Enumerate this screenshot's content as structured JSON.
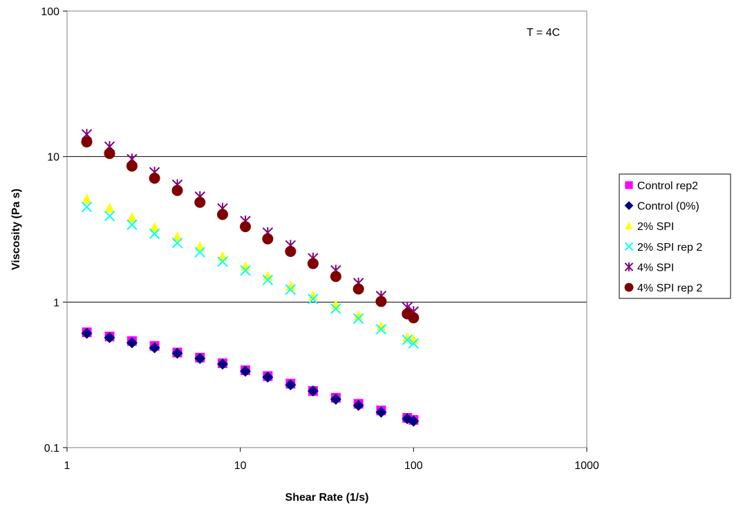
{
  "chart_data": {
    "type": "scatter",
    "title": "",
    "annotation": "T = 4C",
    "xlabel": "Shear Rate (1/s)",
    "ylabel": "Viscosity (Pa s)",
    "xscale": "log",
    "yscale": "log",
    "xlim": [
      1,
      1000
    ],
    "ylim": [
      0.1,
      100
    ],
    "xticks": [
      "1",
      "10",
      "100",
      "1000"
    ],
    "yticks": [
      "0.1",
      "1",
      "10",
      "100"
    ],
    "grid": "horizontal major",
    "legend_position": "right",
    "x": [
      1.3,
      1.76,
      2.37,
      3.2,
      4.33,
      5.85,
      7.9,
      10.7,
      14.4,
      19.5,
      26.3,
      35.6,
      48.1,
      65,
      92,
      100
    ],
    "series": [
      {
        "name": "Control rep2",
        "marker": "square",
        "color": "#ff00ff",
        "values": [
          0.62,
          0.58,
          0.54,
          0.5,
          0.45,
          0.415,
          0.38,
          0.34,
          0.31,
          0.275,
          0.245,
          0.22,
          0.2,
          0.18,
          0.16,
          0.155
        ]
      },
      {
        "name": "Control (0%)",
        "marker": "diamond",
        "color": "#000080",
        "values": [
          0.61,
          0.57,
          0.525,
          0.485,
          0.445,
          0.41,
          0.375,
          0.335,
          0.305,
          0.27,
          0.245,
          0.215,
          0.195,
          0.175,
          0.158,
          0.152
        ]
      },
      {
        "name": "2% SPI",
        "marker": "triangle",
        "color": "#ffff00",
        "values": [
          5.1,
          4.4,
          3.8,
          3.25,
          2.8,
          2.4,
          2.05,
          1.75,
          1.5,
          1.28,
          1.1,
          0.95,
          0.8,
          0.68,
          0.57,
          0.55
        ]
      },
      {
        "name": "2% SPI rep 2",
        "marker": "x",
        "color": "#00ffff",
        "values": [
          4.5,
          3.9,
          3.4,
          2.95,
          2.55,
          2.2,
          1.9,
          1.65,
          1.42,
          1.22,
          1.05,
          0.9,
          0.77,
          0.65,
          0.55,
          0.52
        ]
      },
      {
        "name": "4% SPI",
        "marker": "star",
        "color": "#800080",
        "values": [
          14.2,
          11.7,
          9.6,
          7.8,
          6.4,
          5.3,
          4.4,
          3.6,
          3.0,
          2.45,
          2.0,
          1.65,
          1.35,
          1.1,
          0.92,
          0.86
        ]
      },
      {
        "name": "4% SPI rep 2",
        "marker": "circle",
        "color": "#800000",
        "values": [
          12.6,
          10.5,
          8.6,
          7.1,
          5.85,
          4.85,
          4.0,
          3.3,
          2.72,
          2.23,
          1.84,
          1.5,
          1.23,
          1.01,
          0.83,
          0.78
        ]
      }
    ]
  }
}
